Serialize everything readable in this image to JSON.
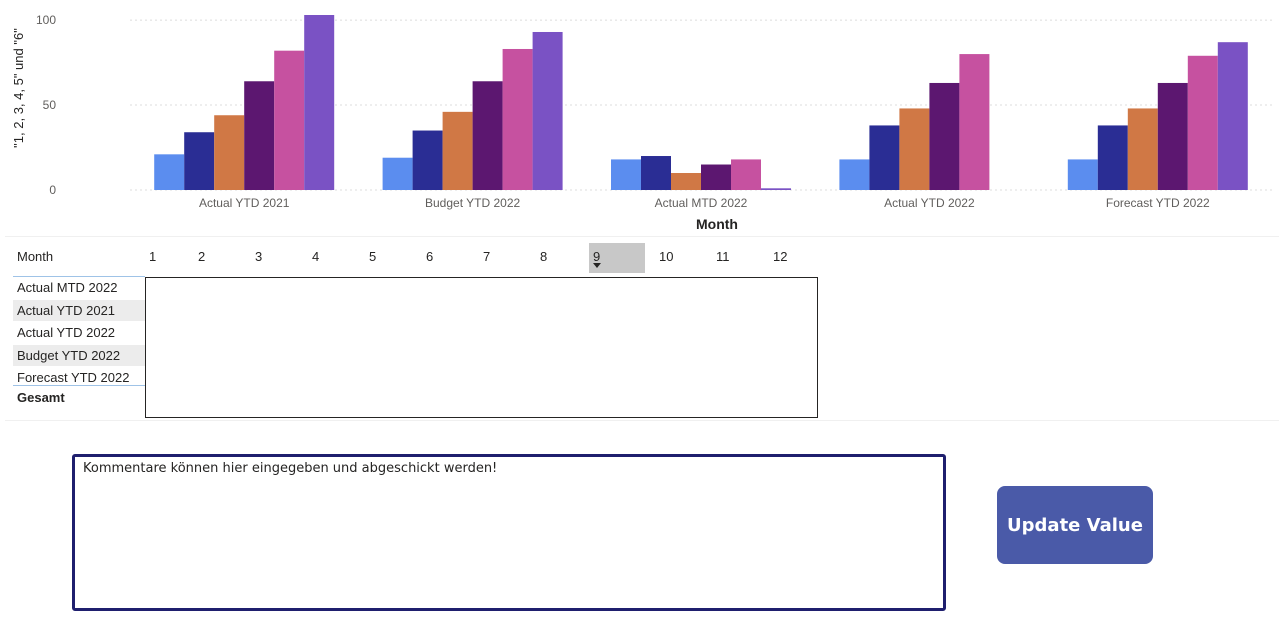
{
  "chart_data": {
    "type": "bar",
    "categories": [
      "Actual YTD 2021",
      "Budget YTD 2022",
      "Actual MTD 2022",
      "Actual YTD 2022",
      "Forecast YTD 2022"
    ],
    "series": [
      {
        "values": [
          21,
          19,
          18,
          18,
          18
        ],
        "color": "#5b8def"
      },
      {
        "values": [
          34,
          35,
          20,
          38,
          38
        ],
        "color": "#2a2d94"
      },
      {
        "values": [
          44,
          46,
          10,
          48,
          48
        ],
        "color": "#d07845"
      },
      {
        "values": [
          64,
          64,
          15,
          63,
          63
        ],
        "color": "#5c1770"
      },
      {
        "values": [
          82,
          83,
          18,
          80,
          79
        ],
        "color": "#c651a0"
      },
      {
        "values": [
          103,
          93,
          1,
          null,
          87
        ],
        "color": "#7a52c4"
      }
    ],
    "xlabel": "Month",
    "ylabel": "\"1, 2, 3, 4, 5\" und \"6\"",
    "ylim": [
      0,
      103
    ],
    "yticks": [
      0,
      50,
      100
    ],
    "grid": true
  },
  "matrix": {
    "header_label": "Month",
    "columns": [
      "1",
      "2",
      "3",
      "4",
      "5",
      "6",
      "7",
      "8",
      "9",
      "10",
      "11",
      "12"
    ],
    "selected_column": "9",
    "rows": [
      "Actual MTD 2022",
      "Actual YTD 2021",
      "Actual YTD 2022",
      "Budget YTD 2022",
      "Forecast YTD 2022"
    ],
    "total_label": "Gesamt"
  },
  "comment": {
    "value": "Kommentare können hier eingegeben und abgeschickt werden!"
  },
  "update_button": {
    "label": "Update Value",
    "color": "#4a5aa8"
  }
}
